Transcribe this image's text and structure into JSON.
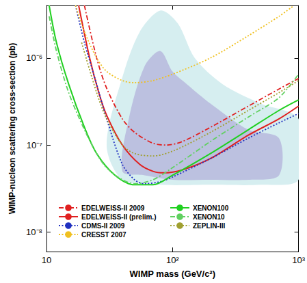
{
  "chart_data": {
    "type": "line",
    "xlabel": "WIMP mass (GeV/c²)",
    "ylabel": "WIMP-nucleon scattering cross-section (pb)",
    "log": true,
    "grid": false,
    "legend": "lower left",
    "xlim": [
      10,
      1000
    ],
    "ylim": [
      6e-09,
      4e-06
    ],
    "xticks": [
      10,
      {
        "value": 100,
        "label": "10²"
      },
      {
        "value": 1000,
        "label": "10³"
      }
    ],
    "yticks": [
      {
        "value": 1e-08,
        "label": "10⁻⁸"
      },
      {
        "value": 1e-07,
        "label": "10⁻⁷"
      },
      {
        "value": 1e-06,
        "label": "10⁻⁶"
      }
    ],
    "series": [
      {
        "name": "EDELWEISS-II 2009",
        "color": "#e02020",
        "line_style": "dashdot",
        "x": [
          20,
          25,
          30,
          40,
          50,
          70,
          90,
          120,
          200,
          400,
          700,
          1000
        ],
        "values": [
          4e-06,
          1e-06,
          4.5e-07,
          2e-07,
          1.4e-07,
          1.05e-07,
          1e-07,
          1.1e-07,
          1.6e-07,
          2.8e-07,
          4.4e-07,
          5.8e-07
        ]
      },
      {
        "name": "EDELWEISS-II (prelim.)",
        "color": "#e02020",
        "line_style": "solid",
        "x": [
          18,
          22,
          26,
          30,
          40,
          55,
          70,
          85,
          120,
          200,
          400,
          700,
          1000
        ],
        "values": [
          4e-06,
          1e-06,
          4e-07,
          2.2e-07,
          1e-07,
          6e-08,
          5e-08,
          4.8e-08,
          5.2e-08,
          7e-08,
          1.3e-07,
          2e-07,
          2.8e-07
        ]
      },
      {
        "name": "CDMS-II 2009",
        "color": "#2030c0",
        "line_style": "dotted",
        "x": [
          17,
          20,
          25,
          30,
          40,
          50,
          60,
          80,
          100,
          200,
          400,
          700,
          1000
        ],
        "values": [
          4e-06,
          1.5e-06,
          5e-07,
          2e-07,
          6e-08,
          4e-08,
          3.6e-08,
          3.8e-08,
          4.3e-08,
          7e-08,
          1.2e-07,
          1.8e-07,
          2.3e-07
        ]
      },
      {
        "name": "CRESST 2007",
        "color": "#f0c020",
        "line_style": "dotted",
        "x": [
          17,
          20,
          25,
          30,
          40,
          50,
          70,
          100,
          200,
          400,
          700,
          900
        ],
        "values": [
          4e-06,
          2e-06,
          1e-06,
          7e-07,
          5.5e-07,
          5.2e-07,
          5.5e-07,
          6.5e-07,
          1e-06,
          1.8e-06,
          3e-06,
          3.9e-06
        ]
      },
      {
        "name": "XENON100",
        "color": "#20d020",
        "line_style": "solid",
        "x": [
          10.5,
          12,
          15,
          20,
          25,
          35,
          50,
          70,
          100,
          200,
          400,
          700,
          1000
        ],
        "values": [
          4e-06,
          1.5e-06,
          5e-07,
          1.6e-07,
          8e-08,
          4.5e-08,
          3.5e-08,
          3.5e-08,
          4.5e-08,
          8e-08,
          1.5e-07,
          2.5e-07,
          3.3e-07
        ]
      },
      {
        "name": "XENON10",
        "color": "#60d060",
        "line_style": "dashdot",
        "x": [
          10.5,
          12,
          15,
          20,
          25,
          30,
          40,
          50,
          70,
          100,
          200,
          400,
          700,
          1000
        ],
        "values": [
          3e-06,
          1.2e-06,
          4e-07,
          1.5e-07,
          8e-08,
          5.5e-08,
          4e-08,
          3.6e-08,
          4e-08,
          5.5e-08,
          1.1e-07,
          2.1e-07,
          3.5e-07,
          6.5e-07
        ]
      },
      {
        "name": "ZEPLIN-III",
        "color": "#a0a030",
        "line_style": "dotted",
        "x": [
          19,
          25,
          30,
          40,
          50,
          70,
          100,
          200,
          400,
          700,
          1000
        ],
        "values": [
          1.5e-06,
          4e-07,
          2e-07,
          1e-07,
          8e-08,
          7.5e-08,
          8.5e-08,
          1.4e-07,
          2.5e-07,
          4e-07,
          5.5e-07
        ]
      }
    ],
    "regions": [
      {
        "color": "#d6eef0",
        "x": [
          30,
          40,
          55,
          80,
          110,
          150,
          250,
          500,
          1000,
          1000,
          500,
          200,
          80,
          40
        ],
        "values": [
          1e-07,
          6e-07,
          2e-06,
          3.5e-06,
          2.5e-06,
          1e-06,
          5e-07,
          3e-07,
          2e-07,
          4e-08,
          3.5e-08,
          3.5e-08,
          3.5e-08,
          4e-08
        ]
      },
      {
        "color": "#bcc1e0",
        "x": [
          40,
          45,
          60,
          80,
          100,
          130,
          200,
          400,
          700,
          700,
          400,
          200,
          100,
          60
        ],
        "values": [
          5e-08,
          2e-07,
          8e-07,
          1.2e-06,
          7e-07,
          5e-07,
          3e-07,
          1.5e-07,
          1.2e-07,
          4.5e-08,
          4e-08,
          4e-08,
          4e-08,
          4.5e-08
        ]
      }
    ]
  }
}
